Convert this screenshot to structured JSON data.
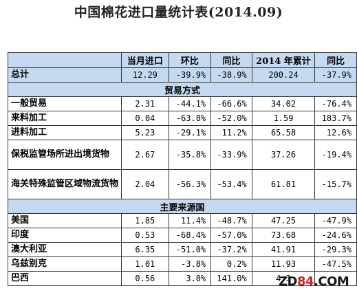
{
  "title": "中国棉花进口量统计表(2014.09)",
  "columns": [
    "",
    "当月进口",
    "环比",
    "同比",
    "2014 年累计",
    "同比"
  ],
  "total": {
    "label": "总计",
    "cells": [
      "12.29",
      "-39.9%",
      "-38.9%",
      "200.24",
      "-37.9%"
    ]
  },
  "section_trade": {
    "title": "贸易方式",
    "rows": [
      {
        "label": "一般贸易",
        "cells": [
          "2.31",
          "-44.1%",
          "-66.6%",
          "34.02",
          "-76.4%"
        ]
      },
      {
        "label": "来料加工",
        "cells": [
          "0.04",
          "-63.8%",
          "-52.0%",
          "1.59",
          "183.7%"
        ]
      },
      {
        "label": "进料加工",
        "cells": [
          "5.23",
          "-29.1%",
          "11.2%",
          "65.58",
          "12.6%"
        ]
      },
      {
        "label": "保税监管场所进出境货物",
        "cells": [
          "2.67",
          "-35.8%",
          "-33.9%",
          "37.26",
          "-19.4%"
        ]
      },
      {
        "label": "海关特殊监管区域物流货物",
        "cells": [
          "2.04",
          "-56.3%",
          "-53.4%",
          "61.81",
          "-15.7%"
        ]
      }
    ]
  },
  "section_source": {
    "title": "主要来源国",
    "rows": [
      {
        "label": "美国",
        "cells": [
          "1.85",
          "11.4%",
          "-48.7%",
          "47.25",
          "-47.9%"
        ]
      },
      {
        "label": "印度",
        "cells": [
          "0.53",
          "-68.4%",
          "-57.0%",
          "73.68",
          "-24.6%"
        ]
      },
      {
        "label": "澳大利亚",
        "cells": [
          "6.35",
          "-51.0%",
          "-37.2%",
          "41.91",
          "-29.3%"
        ]
      },
      {
        "label": "乌兹别克",
        "cells": [
          "1.01",
          "-3.8%",
          "0.2%",
          "11.93",
          "-47.5%"
        ]
      },
      {
        "label": "巴西",
        "cells": [
          "0.56",
          "3.0%",
          "141.0%",
          "4.3",
          ""
        ]
      }
    ]
  },
  "watermark": {
    "prefix": "ZD",
    "num": "84",
    "suffix": ".COM"
  }
}
